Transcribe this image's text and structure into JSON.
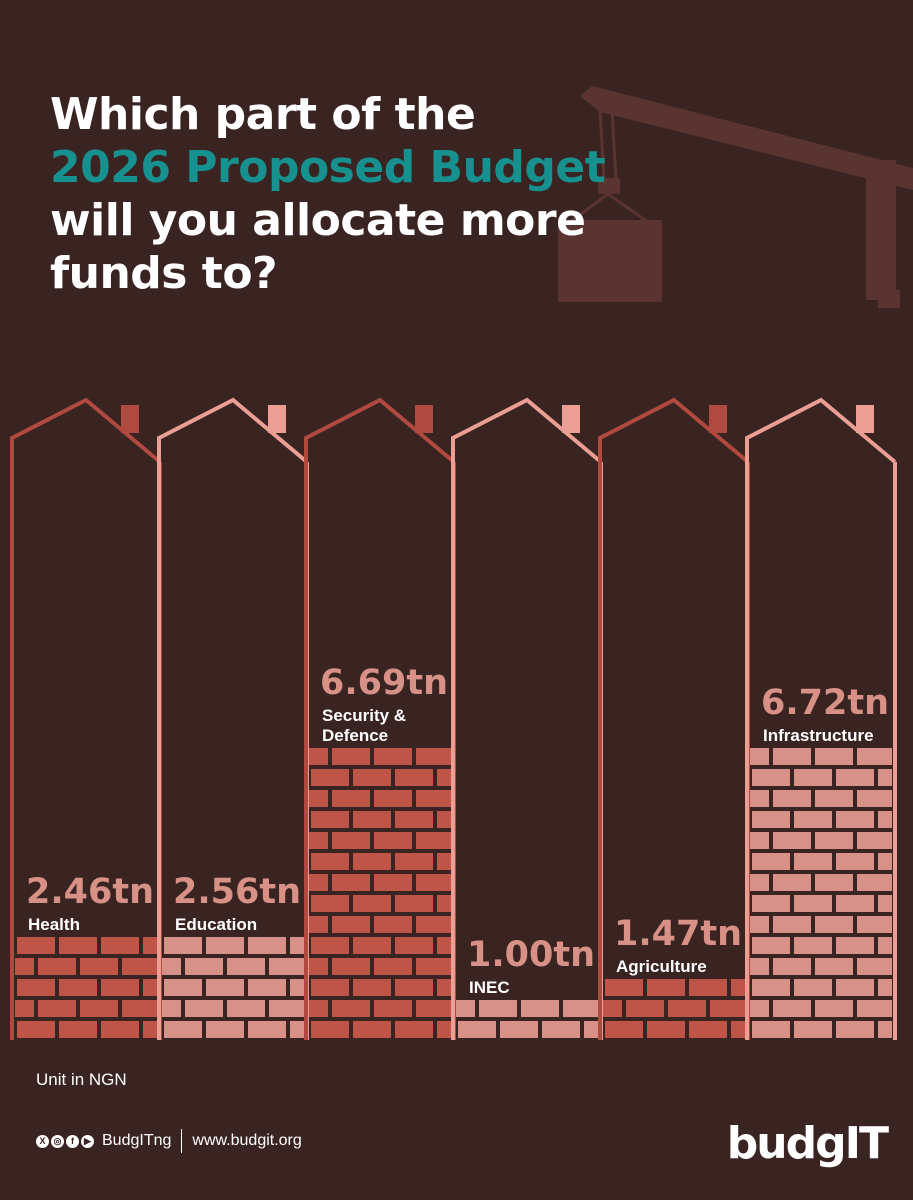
{
  "headline": {
    "line1": "Which part of the",
    "line2": "2026 Proposed Budget",
    "line3": "will you allocate more",
    "line4": "funds to?"
  },
  "chart_data": {
    "type": "bar",
    "title": "Which part of the 2026 Proposed Budget will you allocate more funds to?",
    "categories": [
      "Health",
      "Education",
      "Security & Defence",
      "INEC",
      "Agriculture",
      "Infrastructure"
    ],
    "values": [
      2.46,
      2.56,
      6.69,
      1.0,
      1.47,
      6.72
    ],
    "value_labels": [
      "2.46tn",
      "2.56tn",
      "6.69tn",
      "1.00tn",
      "1.47tn",
      "6.72tn"
    ],
    "label_lines": [
      [
        "Health"
      ],
      [
        "Education"
      ],
      [
        "Security &",
        "Defence"
      ],
      [
        "INEC"
      ],
      [
        "Agriculture"
      ],
      [
        "Infrastructure"
      ]
    ],
    "unit": "Unit in NGN",
    "colors": {
      "dark_brick": "#bf5449",
      "light_brick": "#d79189",
      "dark_outline": "#b0493f",
      "light_outline": "#eb9f94",
      "value_text": "#d89187"
    },
    "series_palette": [
      "dark",
      "light",
      "dark",
      "light",
      "dark",
      "light"
    ],
    "grid": false,
    "legend": "none"
  },
  "footer": {
    "social_icons": [
      "x-icon",
      "instagram-icon",
      "facebook-icon",
      "youtube-icon"
    ],
    "handle": "BudgITng",
    "website": "www.budgit.org"
  },
  "logo": {
    "text": "budgIT"
  },
  "background_color": "#3a2422",
  "accent_color": "#16918f"
}
